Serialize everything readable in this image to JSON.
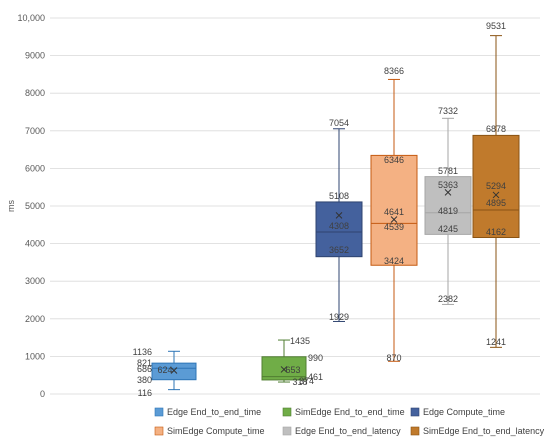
{
  "chart_data": {
    "type": "box",
    "ylabel": "ms",
    "ylim": [
      0,
      10000
    ],
    "yticks": [
      0,
      1000,
      2000,
      3000,
      4000,
      5000,
      6000,
      7000,
      8000,
      9000,
      10000
    ],
    "ytick_labels": [
      "0",
      "1000",
      "2000",
      "3000",
      "4000",
      "5000",
      "6000",
      "7000",
      "8000",
      "9000",
      "10,000"
    ],
    "grid": true,
    "legend_position": "bottom",
    "series": [
      {
        "name": "Edge End_to_end_time",
        "color": "#5b9bd5",
        "stroke": "#2e75b6",
        "min": 116,
        "q1": 380,
        "median": 686,
        "q3": 821,
        "max": 1136,
        "mean": 624,
        "labels": [
          "1136",
          "821",
          "686",
          "380",
          "624",
          "116"
        ]
      },
      {
        "name": "SimEdge End_to_end_time",
        "color": "#70ad47",
        "stroke": "#507e32",
        "min": 318,
        "q1": 374,
        "median": 461,
        "q3": 990,
        "max": 1435,
        "mean": 653,
        "labels": [
          "1435",
          "990",
          "653",
          "461",
          "374",
          "318"
        ]
      },
      {
        "name": "Edge Compute_time",
        "color": "#44619d",
        "stroke": "#2f4470",
        "min": 1929,
        "q1": 3652,
        "median": 4308,
        "q3": 5108,
        "max": 7054,
        "mean": 4750,
        "labels": [
          "7054",
          "5108",
          "4308",
          "3652",
          "1929"
        ]
      },
      {
        "name": "SimEdge Compute_time",
        "color": "#f4b183",
        "stroke": "#c55a11",
        "min": 870,
        "q1": 3424,
        "median": 4539,
        "q3": 6346,
        "max": 8366,
        "mean": 4641,
        "labels": [
          "8366",
          "6346",
          "4641",
          "4539",
          "3424",
          "870"
        ]
      },
      {
        "name": "Edge End_to_end_latency",
        "color": "#bfbfbf",
        "stroke": "#a6a6a6",
        "min": 2382,
        "q1": 4245,
        "median": 4819,
        "q3": 5781,
        "max": 7332,
        "mean": 5363,
        "labels": [
          "7332",
          "5781",
          "5363",
          "4819",
          "4245",
          "2382"
        ]
      },
      {
        "name": "SimEdge End_to_end_latency",
        "color": "#c07a2c",
        "stroke": "#8a5313",
        "min": 1241,
        "q1": 4162,
        "median": 4895,
        "q3": 6878,
        "max": 9531,
        "mean": 5294,
        "labels": [
          "9531",
          "6878",
          "5294",
          "4895",
          "4162",
          "1241"
        ]
      }
    ]
  }
}
